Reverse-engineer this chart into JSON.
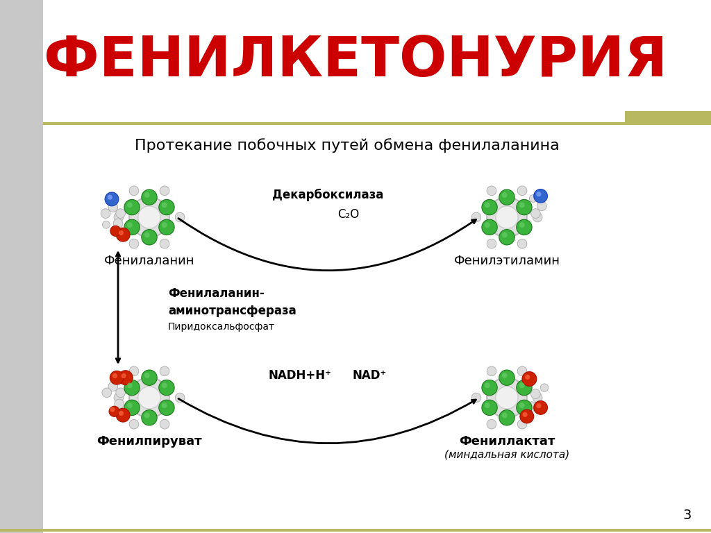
{
  "title": "ФЕНИЛКЕТОНУРИЯ",
  "title_color": "#CC0000",
  "subtitle": "Протекание побочных путей обмена фенилаланина",
  "background_color": "#FFFFFF",
  "left_panel_color": "#C8C8C8",
  "top_right_accent_color": "#B8B860",
  "page_number": "3",
  "molecule_labels": {
    "phenylalanine": "Фенилаланин",
    "phenylethylamine": "Фенилэтиламин",
    "phenylpyruvate": "Фенилпируват",
    "phenyllactate": "Фениллактат",
    "phenyllactate_sub": "(миндальная кислота)"
  },
  "reaction_labels": {
    "decarboxylase": "Декарбоксилаза",
    "co2": "C₂O",
    "aminotransferase_line1": "Фенилаланин-",
    "aminotransferase_line2": "аминотрансфераза",
    "pyridoxal": "Пиридоксальфосфат",
    "nadh": "NADH+H⁺",
    "nad": "NAD⁺"
  },
  "colors": {
    "green_dark": "#1A7A1A",
    "green_mid": "#2E8B2E",
    "green_light": "#3CB33C",
    "red_dark": "#AA1100",
    "red_mid": "#CC2200",
    "blue_dark": "#1A44BB",
    "blue_mid": "#3366CC",
    "gray_light": "#CCCCCC",
    "gray_mid": "#AAAAAA",
    "gray_dark": "#888888",
    "ring_outer": "#D8D8D8",
    "ring_inner": "#EFEFEF",
    "white": "#FFFFFF",
    "black": "#000000"
  }
}
